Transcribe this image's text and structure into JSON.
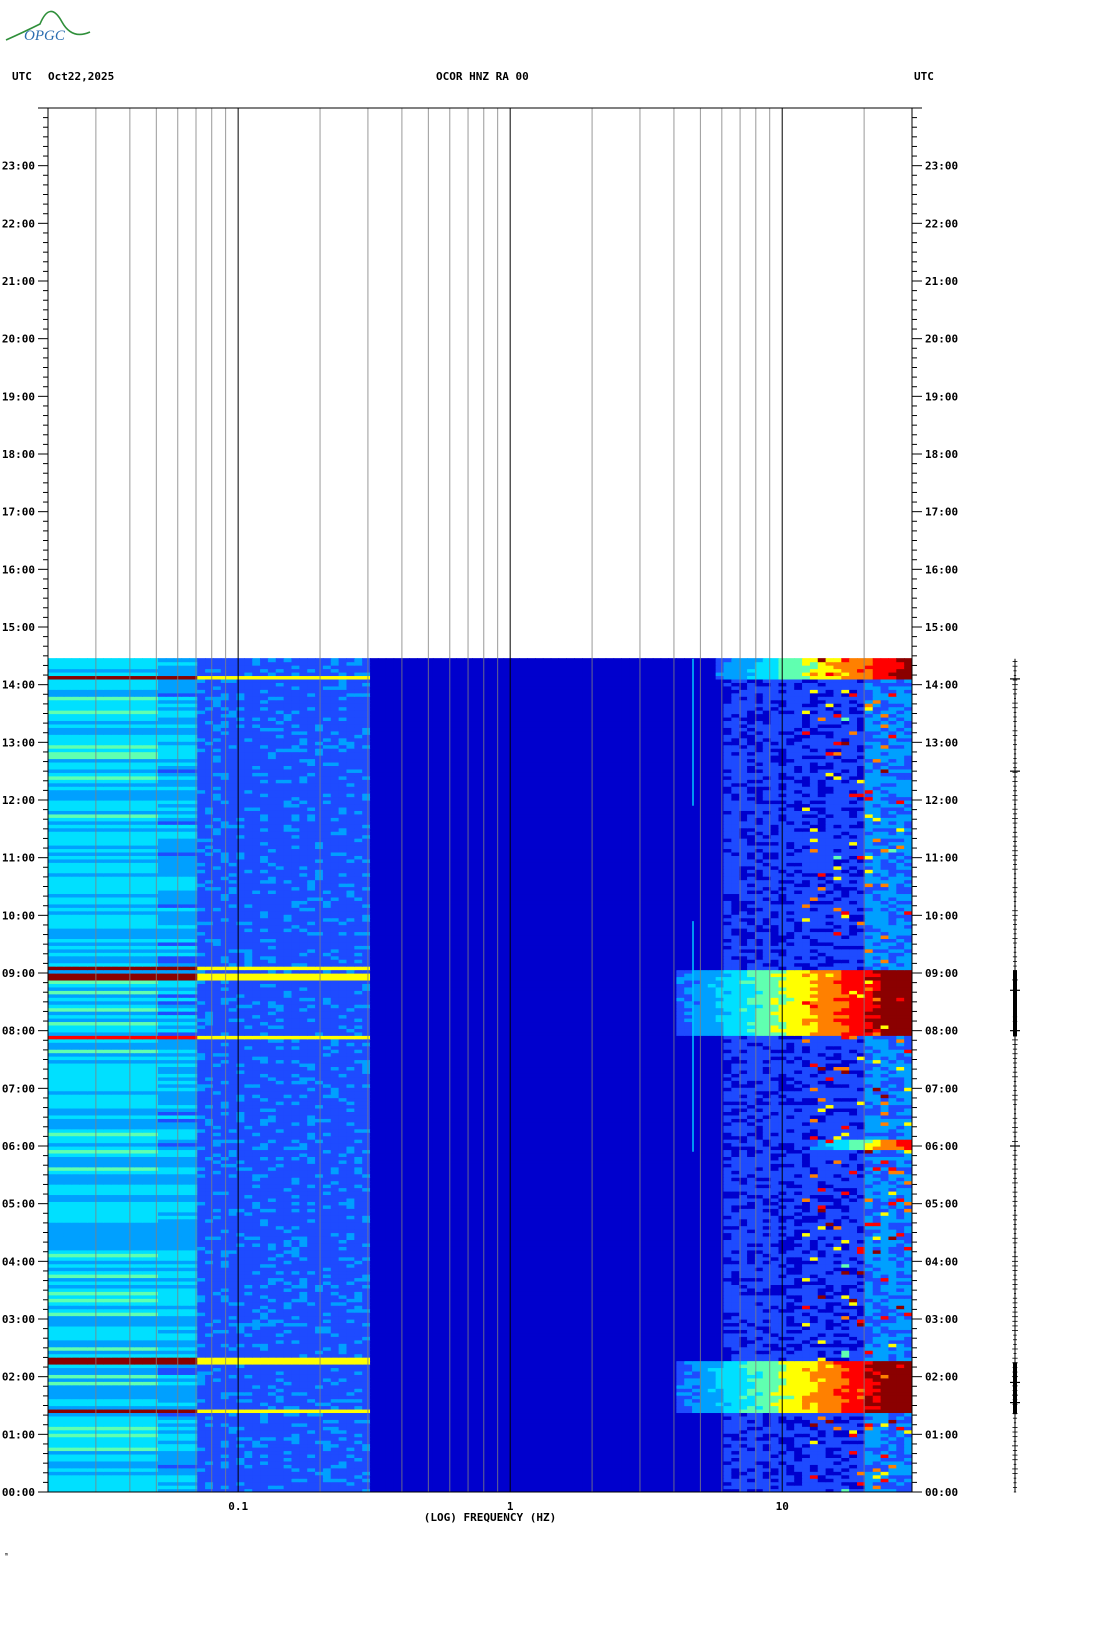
{
  "logo": {
    "text": "OPGC",
    "color": "#2f8f3a"
  },
  "header": {
    "left_utc": "UTC",
    "date": "Oct22,2025",
    "station": "OCOR HNZ RA 00",
    "right_utc": "UTC"
  },
  "footer_mark": "ᵐ",
  "chart_data": {
    "type": "heatmap",
    "title": "OCOR HNZ RA 00",
    "xlabel": "(LOG) FREQUENCY (HZ)",
    "x_scale": "log",
    "xlim": [
      0.02,
      30
    ],
    "x_ticks": [
      {
        "value": 0.1,
        "label": "0.1"
      },
      {
        "value": 1,
        "label": "1"
      },
      {
        "value": 10,
        "label": "10"
      }
    ],
    "y_unit": "hours UTC",
    "ylim": [
      0,
      24
    ],
    "y_ticks": [
      "00:00",
      "01:00",
      "02:00",
      "03:00",
      "04:00",
      "05:00",
      "06:00",
      "07:00",
      "08:00",
      "09:00",
      "10:00",
      "11:00",
      "12:00",
      "13:00",
      "14:00",
      "15:00",
      "16:00",
      "17:00",
      "18:00",
      "19:00",
      "20:00",
      "21:00",
      "22:00",
      "23:00"
    ],
    "data_end_hour": 14.45,
    "colormap": [
      "#00008b",
      "#0000cd",
      "#1e4bff",
      "#00a0ff",
      "#00e0ff",
      "#60ffb0",
      "#ffff00",
      "#ff8000",
      "#ff0000",
      "#8b0000"
    ],
    "grid": true,
    "high_energy_bands": [
      {
        "start_hour": 1.35,
        "end_hour": 2.25,
        "min_freq_hz": 6,
        "level": 1.0
      },
      {
        "start_hour": 7.9,
        "end_hour": 9.05,
        "min_freq_hz": 6,
        "level": 1.0
      },
      {
        "start_hour": 14.1,
        "end_hour": 14.45,
        "min_freq_hz": 8,
        "level": 0.9
      },
      {
        "start_hour": 5.9,
        "end_hour": 6.1,
        "min_freq_hz": 18,
        "level": 0.8
      }
    ],
    "low_freq_lines": [
      {
        "hour": 1.4,
        "level": 1.0
      },
      {
        "hour": 2.25,
        "level": 1.0
      },
      {
        "hour": 7.85,
        "level": 0.95
      },
      {
        "hour": 8.9,
        "level": 1.0
      },
      {
        "hour": 9.05,
        "level": 1.0
      },
      {
        "hour": 14.1,
        "level": 1.0
      }
    ],
    "narrow_signal": {
      "freq_hz": 4.7,
      "segments": [
        [
          5.9,
          9.9
        ],
        [
          11.9,
          14.45
        ]
      ]
    },
    "trace_bursts_hours": [
      1.55,
      1.9,
      6.0,
      8.0,
      8.7,
      12.5,
      14.1
    ]
  }
}
